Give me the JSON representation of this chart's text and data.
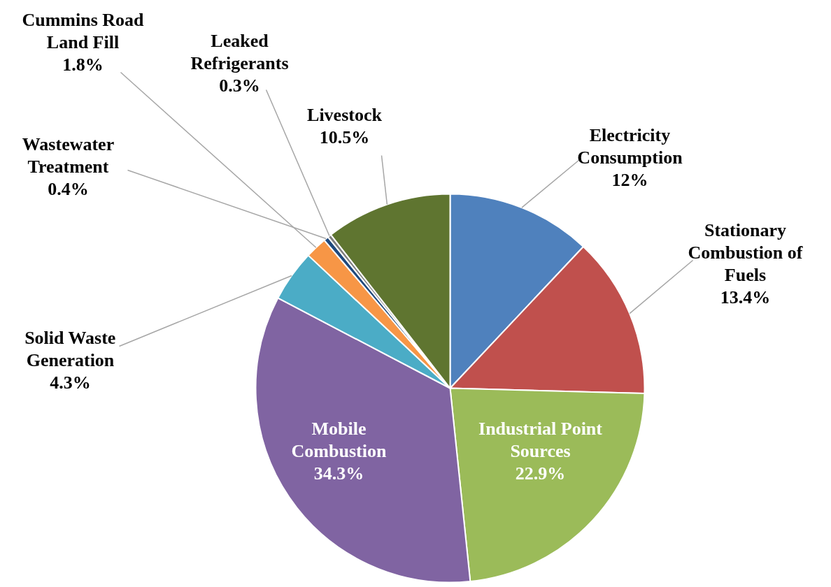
{
  "chart_data": {
    "type": "pie",
    "categories": [
      "Electricity\nConsumption",
      "Stationary\nCombustion of\nFuels",
      "Industrial Point\nSources",
      "Mobile\nCombustion",
      "Solid Waste\nGeneration",
      "Cummins Road\nLand Fill",
      "Wastewater\nTreatment",
      "Leaked\nRefrigerants",
      "Livestock"
    ],
    "values": [
      12,
      13.4,
      22.9,
      34.3,
      4.3,
      1.8,
      0.4,
      0.3,
      10.5
    ],
    "value_labels": [
      "12%",
      "13.4%",
      "22.9%",
      "34.3%",
      "4.3%",
      "1.8%",
      "0.4%",
      "0.3%",
      "10.5%"
    ],
    "colors": [
      "#4f81bd",
      "#c0504d",
      "#9bbb59",
      "#8064a2",
      "#4bacc6",
      "#f79646",
      "#1f497d",
      "#7f7f7f",
      "#5f7530"
    ]
  }
}
